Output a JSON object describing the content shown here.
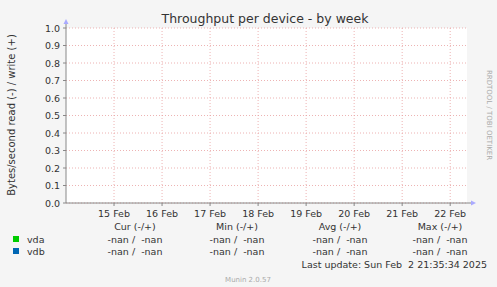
{
  "chart_data": {
    "type": "line",
    "title": "Throughput per device - by week",
    "y_label": "Bytes/second read (-) / write (+)",
    "xlim": [
      14,
      22.35
    ],
    "xticks": [
      {
        "value": 15,
        "label": "15 Feb"
      },
      {
        "value": 16,
        "label": "16 Feb"
      },
      {
        "value": 17,
        "label": "17 Feb"
      },
      {
        "value": 18,
        "label": "18 Feb"
      },
      {
        "value": 19,
        "label": "19 Feb"
      },
      {
        "value": 20,
        "label": "20 Feb"
      },
      {
        "value": 21,
        "label": "21 Feb"
      },
      {
        "value": 22,
        "label": "22 Feb"
      }
    ],
    "ylim": [
      0,
      1
    ],
    "yticks": [
      {
        "value": 0,
        "label": "0.0"
      },
      0.1,
      0.2,
      0.3,
      0.4,
      0.5,
      0.6,
      0.7,
      0.8,
      0.9,
      {
        "value": 1,
        "label": "1.0"
      }
    ],
    "grid": true,
    "legend": "bottom",
    "stats_headers": [
      "Cur (-/+)",
      "Min (-/+)",
      "Avg (-/+)",
      "Max (-/+)"
    ],
    "series": [
      {
        "name": "vda",
        "color": "#00cc00",
        "x": [],
        "values": [],
        "stats": [
          "-nan /  -nan",
          "-nan /  -nan",
          "-nan /  -nan",
          "-nan /  -nan"
        ]
      },
      {
        "name": "vdb",
        "color": "#0066b3",
        "x": [],
        "values": [],
        "stats": [
          "-nan /  -nan",
          "-nan /  -nan",
          "-nan /  -nan",
          "-nan /  -nan"
        ]
      }
    ],
    "annotations": [
      "Last update: Sun Feb  2 21:35:34 2025",
      "Munin 2.0.57",
      "RRDTOOL / TOBI OETIKER"
    ]
  }
}
